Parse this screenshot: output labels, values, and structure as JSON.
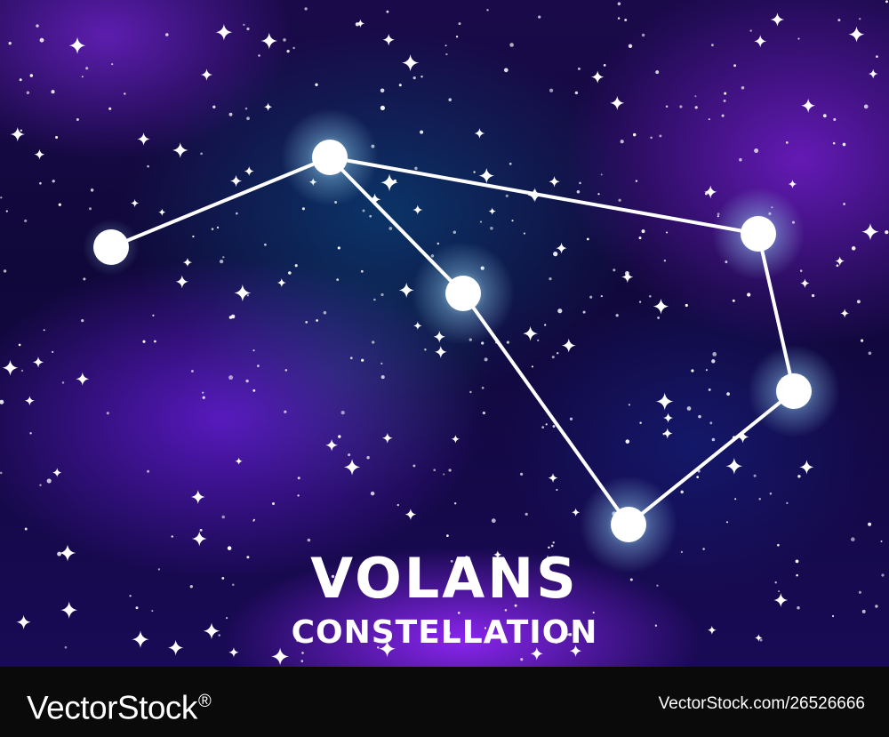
{
  "poster": {
    "title": "Volans",
    "subtitle": "Constellation"
  },
  "watermark": {
    "brand": "VectorStock",
    "mark": "®",
    "credit": "VectorStock.com/26526666"
  },
  "colors": {
    "background": "#120a40",
    "nebula_purple": "#8a2be2",
    "star": "#ffffff",
    "glow": "#a8e6ff",
    "footer": "#0a0a0a"
  }
}
